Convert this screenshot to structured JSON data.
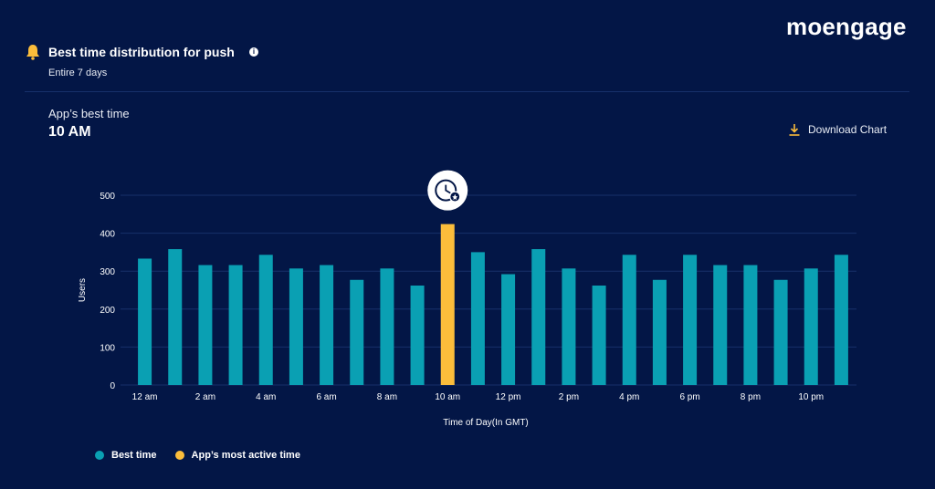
{
  "brand": {
    "logo_text": "moengage"
  },
  "header": {
    "title": "Best time distribution for push",
    "subtitle": "Entire 7 days",
    "info_icon": "info-icon",
    "bell_icon": "bell-icon"
  },
  "best_time": {
    "label": "App’s best time",
    "value": "10 AM"
  },
  "download": {
    "label": "Download Chart",
    "icon": "download-icon"
  },
  "colors": {
    "background": "#031646",
    "best": "#0aa0b3",
    "active": "#fbbd3b",
    "grid": "#17306a"
  },
  "legend": [
    {
      "label": "Best time",
      "color": "#0aa0b3"
    },
    {
      "label": "App’s most active time",
      "color": "#fbbd3b"
    }
  ],
  "chart_data": {
    "type": "bar",
    "xlabel": "Time of Day(In GMT)",
    "ylabel": "Users",
    "ylim": [
      0,
      500
    ],
    "yticks": [
      0,
      100,
      200,
      300,
      400,
      500
    ],
    "grid": true,
    "hours": [
      "12 am",
      "1 am",
      "2 am",
      "3 am",
      "4 am",
      "5 am",
      "6 am",
      "7 am",
      "8 am",
      "9 am",
      "10 am",
      "11 am",
      "12 pm",
      "1 pm",
      "2 pm",
      "3 pm",
      "4 pm",
      "5 pm",
      "6 pm",
      "7 pm",
      "8 pm",
      "9 pm",
      "10 pm",
      "11 pm"
    ],
    "tick_labels": [
      "12 am",
      "2 am",
      "4 am",
      "6 am",
      "8 am",
      "10 am",
      "12 pm",
      "2 pm",
      "4 pm",
      "6 pm",
      "8 pm",
      "10 pm"
    ],
    "values": [
      333,
      358,
      316,
      316,
      343,
      307,
      316,
      277,
      307,
      262,
      424,
      350,
      292,
      358,
      307,
      262,
      343,
      277,
      343,
      316,
      316,
      277,
      307,
      343
    ],
    "highlight_index": 10,
    "highlight_icon": "clock-icon"
  }
}
